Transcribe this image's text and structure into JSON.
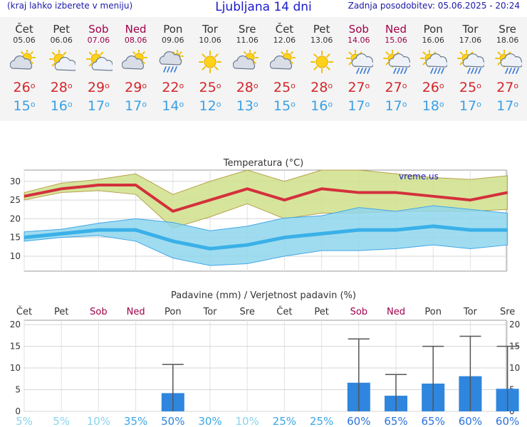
{
  "header": {
    "note": "(kraj lahko izberete v meniju)",
    "title": "Ljubljana 14 dni",
    "updated": "Zadnja posodobitev: 05.06.2025 - 20:24"
  },
  "days": [
    {
      "name": "Čet",
      "date": "05.06",
      "weekend": false,
      "icon": "partly-cloudy-icon",
      "tmax": "26",
      "tmin": "15"
    },
    {
      "name": "Pet",
      "date": "06.06",
      "weekend": false,
      "icon": "sun-cloud-icon",
      "tmax": "28",
      "tmin": "16"
    },
    {
      "name": "Sob",
      "date": "07.06",
      "weekend": true,
      "icon": "sun-cloud-icon",
      "tmax": "29",
      "tmin": "17"
    },
    {
      "name": "Ned",
      "date": "08.06",
      "weekend": true,
      "icon": "partly-cloudy-icon",
      "tmax": "29",
      "tmin": "17"
    },
    {
      "name": "Pon",
      "date": "09.06",
      "weekend": false,
      "icon": "rain-cloud-icon",
      "tmax": "22",
      "tmin": "14"
    },
    {
      "name": "Tor",
      "date": "10.06",
      "weekend": false,
      "icon": "sun-icon",
      "tmax": "25",
      "tmin": "12"
    },
    {
      "name": "Sre",
      "date": "11.06",
      "weekend": false,
      "icon": "partly-cloudy-icon",
      "tmax": "28",
      "tmin": "13"
    },
    {
      "name": "Čet",
      "date": "12.06",
      "weekend": false,
      "icon": "partly-cloudy-icon",
      "tmax": "25",
      "tmin": "15"
    },
    {
      "name": "Pet",
      "date": "13.06",
      "weekend": false,
      "icon": "sun-icon",
      "tmax": "28",
      "tmin": "16"
    },
    {
      "name": "Sob",
      "date": "14.06",
      "weekend": true,
      "icon": "sun-rain-icon",
      "tmax": "27",
      "tmin": "17"
    },
    {
      "name": "Ned",
      "date": "15.06",
      "weekend": true,
      "icon": "sun-rain-icon",
      "tmax": "27",
      "tmin": "17"
    },
    {
      "name": "Pon",
      "date": "16.06",
      "weekend": false,
      "icon": "sun-rain-icon",
      "tmax": "26",
      "tmin": "18"
    },
    {
      "name": "Tor",
      "date": "17.06",
      "weekend": false,
      "icon": "sun-rain-icon",
      "tmax": "25",
      "tmin": "17"
    },
    {
      "name": "Sre",
      "date": "18.06",
      "weekend": false,
      "icon": "sun-rain-icon",
      "tmax": "27",
      "tmin": "17"
    }
  ],
  "chart_data": [
    {
      "type": "line",
      "title": "Temperatura (°C)",
      "watermark": "vreme.us",
      "x": [
        "Čet",
        "Pet",
        "Sob",
        "Ned",
        "Pon",
        "Tor",
        "Sre",
        "Čet",
        "Pet",
        "Sob",
        "Ned",
        "Pon",
        "Tor",
        "Sre"
      ],
      "ylim": [
        6,
        33
      ],
      "yticks": [
        10,
        15,
        20,
        25,
        30
      ],
      "grid": true,
      "series": [
        {
          "role": "tmax",
          "values": [
            26,
            28,
            29,
            29,
            22,
            25,
            28,
            25,
            28,
            27,
            27,
            26,
            25,
            27
          ],
          "color": "#d4303c"
        },
        {
          "role": "tmax_high",
          "values": [
            27,
            29.5,
            30.5,
            32,
            26.5,
            30,
            33,
            30,
            33,
            33,
            32,
            31,
            30.5,
            31.5
          ],
          "color": "#c8dc7a"
        },
        {
          "role": "tmax_low",
          "values": [
            25,
            27,
            27.5,
            26.5,
            17.5,
            20.5,
            24,
            20,
            21.5,
            21.5,
            22,
            22,
            22,
            22.5
          ],
          "color": "#c8dc7a"
        },
        {
          "role": "tmin",
          "values": [
            15,
            16,
            17,
            17,
            14,
            12,
            13,
            15,
            16,
            17,
            17,
            18,
            17,
            17
          ],
          "color": "#3ab0e8"
        },
        {
          "role": "tmin_high",
          "values": [
            16.5,
            17.2,
            18.8,
            20,
            19,
            16.8,
            18,
            20.2,
            20.8,
            23,
            22,
            23.5,
            22.5,
            21.5
          ],
          "color": "#88d8ec"
        },
        {
          "role": "tmin_low",
          "values": [
            14,
            15,
            15.5,
            14,
            9.5,
            7.5,
            8,
            10,
            11.5,
            11.5,
            12,
            13,
            12,
            13
          ],
          "color": "#88d8ec"
        }
      ]
    },
    {
      "type": "bar",
      "title": "Padavine (mm) / Verjetnost padavin (%)",
      "categories": [
        "Čet",
        "Pet",
        "Sob",
        "Ned",
        "Pon",
        "Tor",
        "Sre",
        "Čet",
        "Pet",
        "Sob",
        "Ned",
        "Pon",
        "Tor",
        "Sre"
      ],
      "values": [
        0,
        0,
        0,
        0,
        4.2,
        0,
        0,
        0,
        0,
        6.6,
        3.6,
        6.4,
        8.1,
        5.2
      ],
      "error_high": [
        0,
        0,
        0,
        0,
        10.8,
        0,
        0,
        0,
        0,
        16.7,
        8.5,
        15,
        17.3,
        15
      ],
      "probability": [
        "5%",
        "5%",
        "10%",
        "35%",
        "50%",
        "30%",
        "10%",
        "25%",
        "25%",
        "60%",
        "65%",
        "65%",
        "60%",
        "60%"
      ],
      "probability_colors": [
        "#88d4ee",
        "#88d4ee",
        "#88d4ee",
        "#3aa8e8",
        "#2a82de",
        "#3aa8e8",
        "#88d4ee",
        "#3aa8e8",
        "#3aa8e8",
        "#2a72dc",
        "#2a72dc",
        "#2a72dc",
        "#2a72dc",
        "#2a72dc"
      ],
      "ylim": [
        0,
        21
      ],
      "yticks": [
        0,
        5,
        10,
        15,
        20
      ],
      "bar_color": "#2e86de",
      "grid": true
    }
  ]
}
